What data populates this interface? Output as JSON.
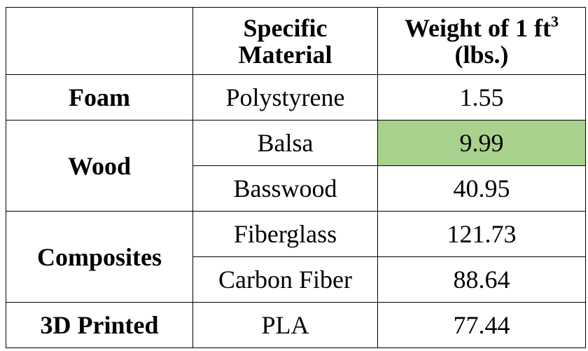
{
  "table": {
    "header": {
      "col1": "",
      "col2_line1": "Specific",
      "col2_line2": "Material",
      "col3_line1": "Weight of 1 ft",
      "col3_sup": "3",
      "col3_line2": "(lbs.)"
    },
    "rows": [
      {
        "category": "Foam",
        "material": "Polystyrene",
        "weight": "1.55"
      },
      {
        "category": "Wood",
        "material": "Balsa",
        "weight": "9.99"
      },
      {
        "category": "",
        "material": "Basswood",
        "weight": "40.95"
      },
      {
        "category": "Composites",
        "material": "Fiberglass",
        "weight": "121.73"
      },
      {
        "category": "",
        "material": "Carbon Fiber",
        "weight": "88.64"
      },
      {
        "category": "3D Printed",
        "material": "PLA",
        "weight": "77.44"
      }
    ],
    "highlight_color": "#a9d18e",
    "highlighted_cell": "Balsa weight"
  }
}
